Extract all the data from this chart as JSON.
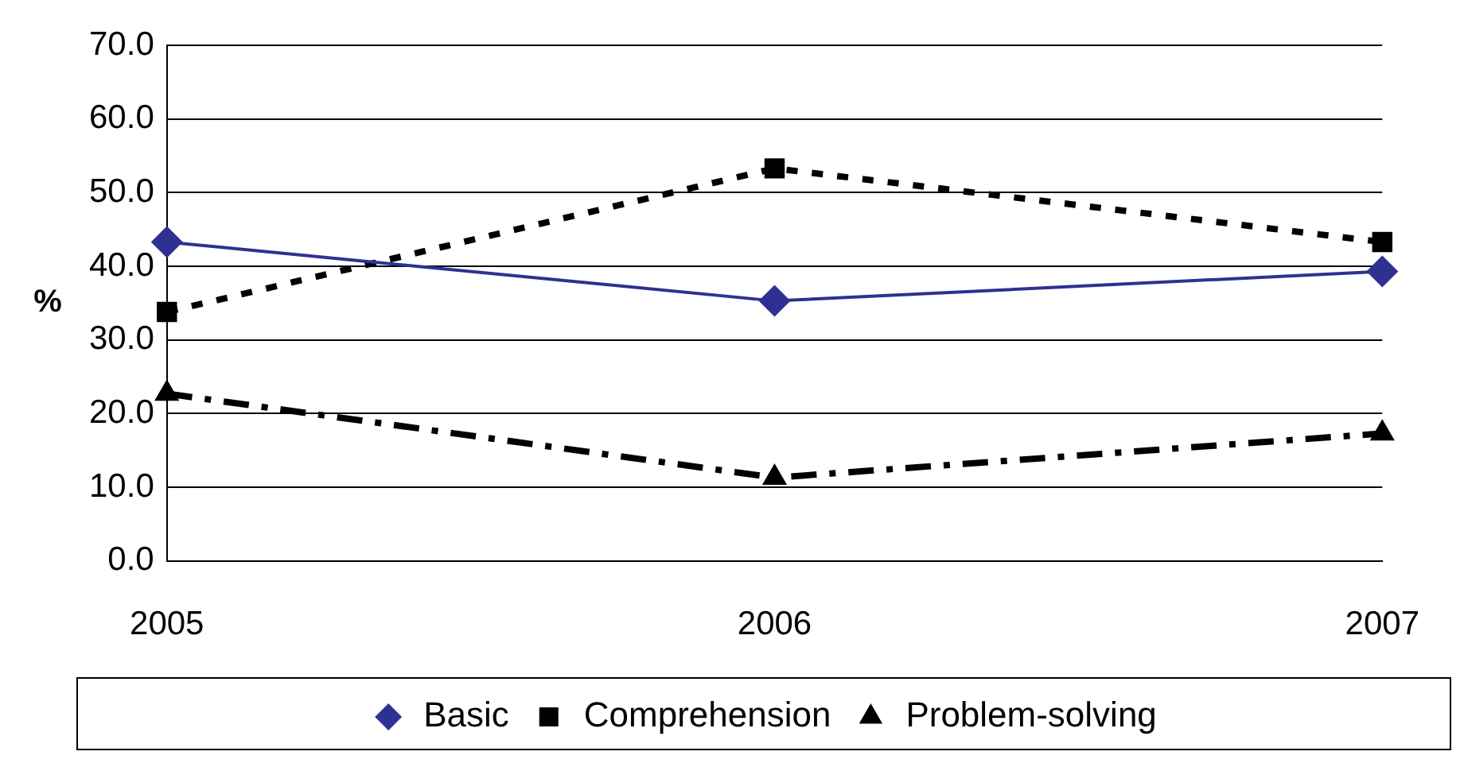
{
  "chart_data": {
    "type": "line",
    "ylabel": "%",
    "categories": [
      "2005",
      "2006",
      "2007"
    ],
    "series": [
      {
        "name": "Basic",
        "color": "#2e3192",
        "values": [
          43.3,
          35.3,
          39.3
        ],
        "marker": "diamond",
        "line_style": "solid"
      },
      {
        "name": "Comprehension",
        "color": "#000000",
        "values": [
          33.8,
          53.3,
          43.3
        ],
        "marker": "square",
        "line_style": "dotted"
      },
      {
        "name": "Problem-solving",
        "color": "#000000",
        "values": [
          22.7,
          11.3,
          17.3
        ],
        "marker": "triangle",
        "line_style": "dashed"
      }
    ],
    "ylim": [
      0,
      70
    ],
    "yticks": [
      {
        "value": 0,
        "label": "0.0"
      },
      {
        "value": 10,
        "label": "10.0"
      },
      {
        "value": 20,
        "label": "20.0"
      },
      {
        "value": 30,
        "label": "30.0"
      },
      {
        "value": 40,
        "label": "40.0"
      },
      {
        "value": 50,
        "label": "50.0"
      },
      {
        "value": 60,
        "label": "60.0"
      },
      {
        "value": 70,
        "label": "70.0"
      }
    ],
    "grid": "y",
    "legend": "bottom"
  }
}
